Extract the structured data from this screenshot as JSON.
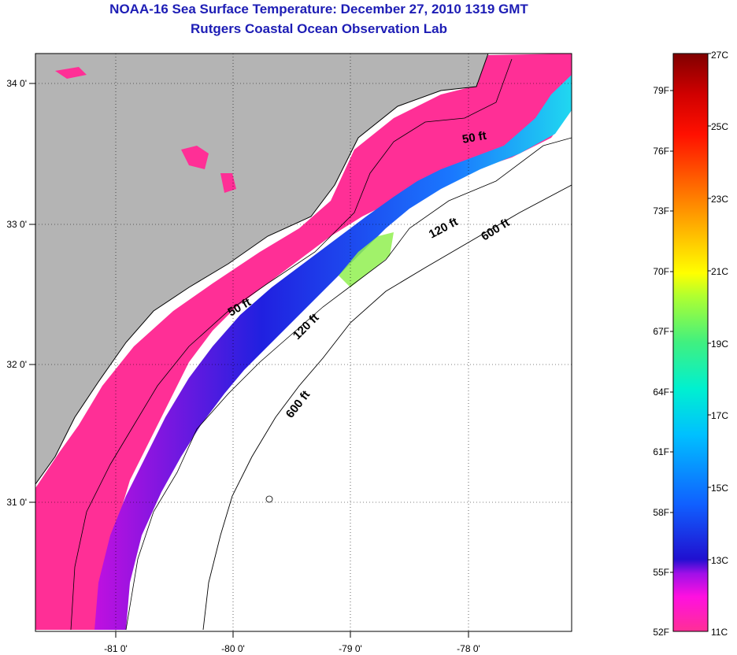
{
  "title": "NOAA-16 Sea Surface Temperature:  December 27, 2010 1319 GMT",
  "subtitle": "Rutgers Coastal Ocean Observation Lab",
  "map": {
    "lon_labels": [
      "-81 0'",
      "-80 0'",
      "-79 0'",
      "-78 0'"
    ],
    "lat_labels": [
      "34 0'",
      "33 0'",
      "32 0'",
      "31 0'"
    ],
    "colors": {
      "land": "#b4b4b4",
      "nearshore": "#ff2f96",
      "deep_blue": "#1428e6",
      "cloud": "#ffffff"
    },
    "contour_labels": [
      {
        "id": "c50a",
        "text": "50 ft"
      },
      {
        "id": "c50b",
        "text": "50 ft"
      },
      {
        "id": "c120a",
        "text": "120 ft"
      },
      {
        "id": "c120b",
        "text": "120 ft"
      },
      {
        "id": "c600a",
        "text": "600 ft"
      },
      {
        "id": "c600b",
        "text": "600 ft"
      }
    ]
  },
  "colorbar": {
    "fahrenheit_labels": [
      "79F",
      "76F",
      "73F",
      "70F",
      "67F",
      "64F",
      "61F",
      "58F",
      "55F",
      "52F"
    ],
    "celsius_labels": [
      "27C",
      "25C",
      "23C",
      "21C",
      "19C",
      "17C",
      "15C",
      "13C",
      "11C"
    ]
  }
}
